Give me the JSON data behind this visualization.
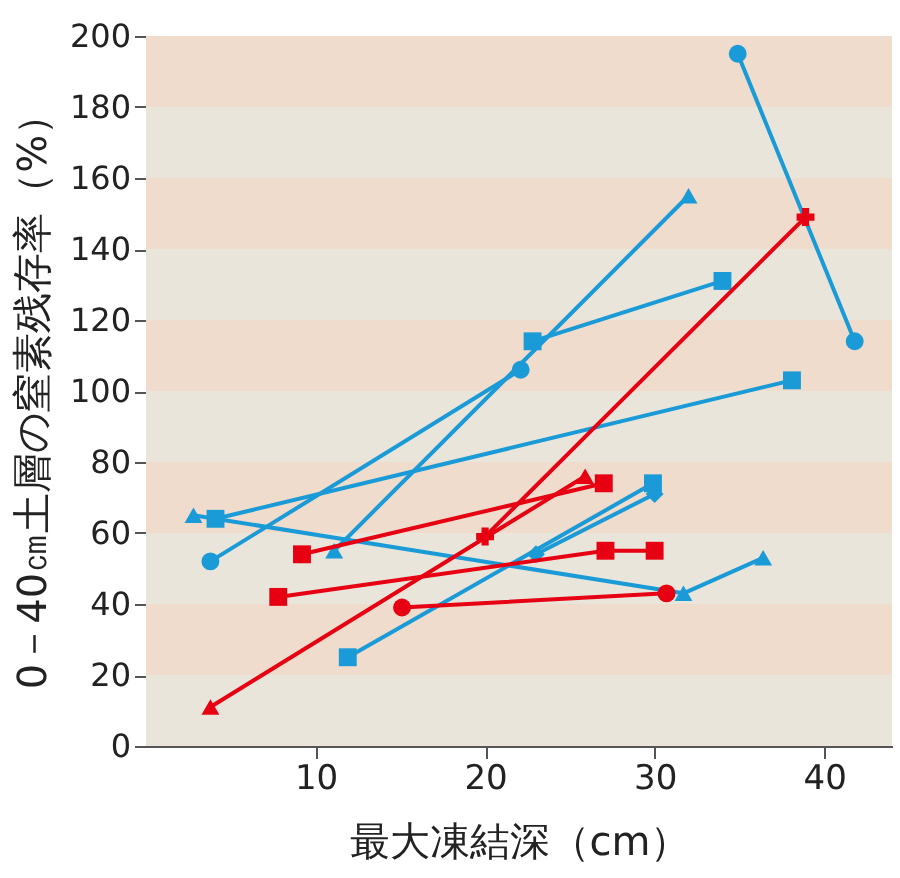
{
  "chart_data": {
    "type": "line",
    "xlabel": "最大凍結深（cm）",
    "ylabel": "0－40㎝土層の窒素残存率（%）",
    "xlim": [
      0,
      44
    ],
    "xticks": [
      10,
      20,
      30,
      40
    ],
    "ylim": [
      0,
      200
    ],
    "yticks": [
      0,
      20,
      40,
      60,
      80,
      100,
      120,
      140,
      160,
      180,
      200
    ],
    "grid": false,
    "legend": false,
    "bands": [
      {
        "axis": "y",
        "from": 0,
        "to": 20,
        "color": "#e9e5da"
      },
      {
        "axis": "y",
        "from": 20,
        "to": 40,
        "color": "#efdccd"
      },
      {
        "axis": "y",
        "from": 40,
        "to": 60,
        "color": "#e9e5da"
      },
      {
        "axis": "y",
        "from": 60,
        "to": 80,
        "color": "#efdccd"
      },
      {
        "axis": "y",
        "from": 80,
        "to": 100,
        "color": "#e9e5da"
      },
      {
        "axis": "y",
        "from": 100,
        "to": 120,
        "color": "#efdccd"
      },
      {
        "axis": "y",
        "from": 120,
        "to": 140,
        "color": "#e9e5da"
      },
      {
        "axis": "y",
        "from": 140,
        "to": 160,
        "color": "#efdccd"
      },
      {
        "axis": "y",
        "from": 160,
        "to": 180,
        "color": "#e9e5da"
      },
      {
        "axis": "y",
        "from": 180,
        "to": 200,
        "color": "#efdccd"
      }
    ],
    "series": [
      {
        "color": "#1a9ad6",
        "marker": "circle",
        "x": [
          34.9,
          41.8
        ],
        "values": [
          195,
          114
        ]
      },
      {
        "color": "#1a9ad6",
        "marker": "circle",
        "x": [
          3.8,
          22.1
        ],
        "values": [
          52,
          106
        ]
      },
      {
        "color": "#1a9ad6",
        "marker": "triangle",
        "x": [
          11.1,
          32.0
        ],
        "values": [
          55,
          155
        ]
      },
      {
        "color": "#1a9ad6",
        "marker": "square",
        "x": [
          22.8,
          34.0
        ],
        "values": [
          114,
          131
        ]
      },
      {
        "color": "#1a9ad6",
        "marker": "square",
        "x": [
          4.1,
          38.1
        ],
        "values": [
          64,
          103
        ]
      },
      {
        "color": "#1a9ad6",
        "marker": "triangle",
        "x": [
          2.8,
          31.7,
          36.4
        ],
        "values": [
          65,
          43,
          53
        ]
      },
      {
        "color": "#1a9ad6",
        "marker": "square",
        "x": [
          11.9,
          29.9
        ],
        "values": [
          25,
          74
        ]
      },
      {
        "color": "#1a9ad6",
        "marker": "diamond",
        "x": [
          23.0,
          30.0
        ],
        "values": [
          54,
          71
        ]
      },
      {
        "color": "#e60012",
        "marker": "triangle",
        "x": [
          3.8,
          25.9
        ],
        "values": [
          11,
          76
        ]
      },
      {
        "color": "#e60012",
        "marker": "cross",
        "x": [
          20.0,
          38.9
        ],
        "values": [
          59,
          149
        ]
      },
      {
        "color": "#e60012",
        "marker": "square",
        "x": [
          9.2,
          27.0
        ],
        "values": [
          54,
          74
        ]
      },
      {
        "color": "#e60012",
        "marker": "square",
        "x": [
          7.8,
          27.1,
          30.0
        ],
        "values": [
          42,
          55,
          55
        ]
      },
      {
        "color": "#e60012",
        "marker": "circle",
        "x": [
          15.1,
          30.7
        ],
        "values": [
          39,
          43
        ]
      }
    ]
  }
}
